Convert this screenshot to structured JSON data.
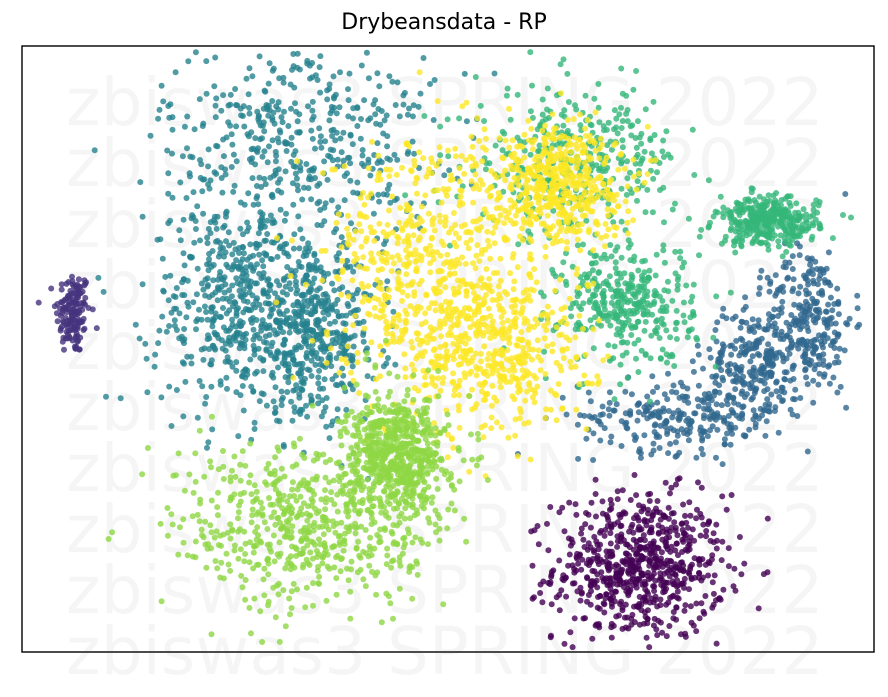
{
  "chart_data": {
    "type": "scatter",
    "title": "Drybeansdata - RP",
    "xlabel": "",
    "ylabel": "",
    "grid": false,
    "axis_ticks": false,
    "watermark": "zbiswas3 SPRING 2022",
    "colormap": "viridis",
    "series": [
      {
        "color": "#46337e",
        "center": [
          -0.88,
          0.12
        ],
        "n": 150,
        "blobs": [
          {
            "c": [
              -0.88,
              0.12
            ],
            "s": [
              0.02,
              0.07
            ]
          }
        ]
      },
      {
        "color": "#440154",
        "center": [
          0.45,
          -0.72
        ],
        "n": 700,
        "blobs": [
          {
            "c": [
              0.45,
              -0.72
            ],
            "s": [
              0.1,
              0.12
            ]
          }
        ]
      },
      {
        "color": "#31688e",
        "center": [
          0.6,
          -0.15
        ],
        "n": 750,
        "blobs": [
          {
            "c": [
              0.85,
              0.1
            ],
            "s": [
              0.05,
              0.12
            ]
          },
          {
            "c": [
              0.55,
              -0.22
            ],
            "s": [
              0.12,
              0.06
            ]
          },
          {
            "c": [
              0.72,
              -0.05
            ],
            "s": [
              0.06,
              0.1
            ]
          }
        ]
      },
      {
        "color": "#26828e",
        "center": [
          -0.4,
          0.4
        ],
        "n": 1400,
        "blobs": [
          {
            "c": [
              -0.35,
              0.7
            ],
            "s": [
              0.16,
              0.18
            ]
          },
          {
            "c": [
              -0.5,
              0.15
            ],
            "s": [
              0.1,
              0.18
            ]
          },
          {
            "c": [
              -0.32,
              0.05
            ],
            "s": [
              0.08,
              0.14
            ]
          }
        ]
      },
      {
        "color": "#35b779",
        "center": [
          0.35,
          0.4
        ],
        "n": 1050,
        "blobs": [
          {
            "c": [
              0.3,
              0.62
            ],
            "s": [
              0.12,
              0.12
            ]
          },
          {
            "c": [
              0.42,
              0.15
            ],
            "s": [
              0.08,
              0.1
            ]
          },
          {
            "c": [
              0.75,
              0.42
            ],
            "s": [
              0.06,
              0.04
            ]
          }
        ]
      },
      {
        "color": "#fde725",
        "center": [
          0.0,
          0.2
        ],
        "n": 1500,
        "blobs": [
          {
            "c": [
              -0.05,
              0.3
            ],
            "s": [
              0.12,
              0.2
            ]
          },
          {
            "c": [
              0.1,
              0.0
            ],
            "s": [
              0.12,
              0.15
            ]
          },
          {
            "c": [
              0.25,
              0.55
            ],
            "s": [
              0.08,
              0.1
            ]
          }
        ]
      },
      {
        "color": "#8fd744",
        "center": [
          -0.3,
          -0.55
        ],
        "n": 1200,
        "blobs": [
          {
            "c": [
              -0.32,
              -0.58
            ],
            "s": [
              0.16,
              0.14
            ]
          },
          {
            "c": [
              -0.12,
              -0.35
            ],
            "s": [
              0.06,
              0.1
            ]
          }
        ]
      }
    ]
  }
}
